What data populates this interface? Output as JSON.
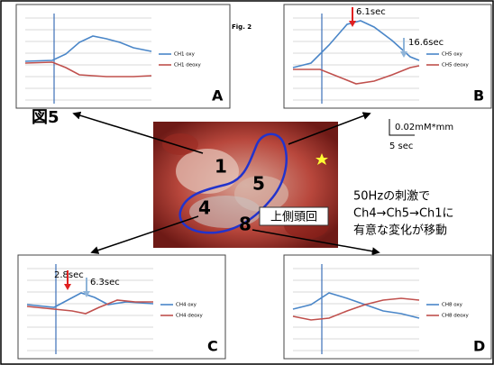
{
  "figure_title": "図5",
  "fig_label": "Fig. 2",
  "scale_bar": {
    "amplitude": "0.02mM*mm",
    "time": "5 sec"
  },
  "panels": [
    {
      "letter": "A",
      "legend": [
        "CH1 oxy",
        "CH1 deoxy"
      ],
      "annotations": []
    },
    {
      "letter": "B",
      "legend": [
        "CH5 oxy",
        "CH5 deoxy"
      ],
      "annotations": [
        "6.1sec",
        "16.6sec"
      ]
    },
    {
      "letter": "C",
      "legend": [
        "CH4 oxy",
        "CH4 deoxy"
      ],
      "annotations": [
        "2.8sec",
        "6.3sec"
      ]
    },
    {
      "letter": "D",
      "legend": [
        "CH8 oxy",
        "CH8 deoxy"
      ],
      "annotations": []
    }
  ],
  "photo": {
    "labels": [
      "1",
      "5",
      "4",
      "8"
    ],
    "region": "上側頭回"
  },
  "caption": [
    "50Hzの刺激で",
    "Ch4→Ch5→Ch1に",
    "有意な変化が移動"
  ]
}
